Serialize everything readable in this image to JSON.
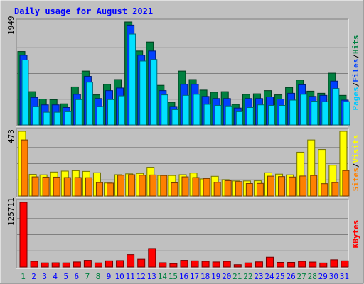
{
  "colors": {
    "background": "#C0C0C0",
    "plot_bg": "#C0C0C0",
    "border": "#808080",
    "hits": "#008040",
    "files": "#0040FF",
    "pages": "#00E0FF",
    "visits": "#FFFF00",
    "sites": "#FF8000",
    "kbytes": "#FF0000",
    "weekend_label": "#008040",
    "weekday_label": "#0000FF",
    "title": "#0000FF"
  },
  "chart_data": [
    {
      "type": "bar",
      "title": "Daily usage for August 2021",
      "panel": "top",
      "categories": [
        "1",
        "2",
        "3",
        "4",
        "5",
        "6",
        "7",
        "8",
        "9",
        "10",
        "11",
        "12",
        "13",
        "14",
        "15",
        "16",
        "17",
        "18",
        "19",
        "20",
        "21",
        "22",
        "23",
        "24",
        "25",
        "26",
        "27",
        "28",
        "29",
        "30",
        "31"
      ],
      "weekend": [
        true,
        false,
        false,
        false,
        false,
        false,
        true,
        true,
        false,
        false,
        false,
        false,
        false,
        true,
        true,
        false,
        false,
        false,
        false,
        false,
        true,
        true,
        false,
        false,
        false,
        false,
        true,
        true,
        false,
        false,
        false
      ],
      "ytick_label": "1949",
      "ylim": [
        0,
        1949
      ],
      "series": [
        {
          "name": "Hits",
          "values": [
            1390,
            630,
            490,
            480,
            400,
            720,
            1020,
            570,
            770,
            860,
            1949,
            1400,
            1570,
            750,
            430,
            1020,
            860,
            660,
            620,
            630,
            390,
            580,
            590,
            650,
            570,
            710,
            850,
            640,
            600,
            980,
            560
          ]
        },
        {
          "name": "Files",
          "values": [
            1320,
            520,
            380,
            380,
            330,
            580,
            920,
            500,
            650,
            700,
            1890,
            1320,
            1400,
            650,
            350,
            770,
            770,
            540,
            500,
            500,
            320,
            500,
            500,
            530,
            490,
            600,
            760,
            540,
            560,
            830,
            470
          ]
        },
        {
          "name": "Pages",
          "values": [
            1230,
            350,
            240,
            240,
            250,
            480,
            810,
            350,
            480,
            550,
            1720,
            1210,
            1240,
            570,
            290,
            560,
            580,
            390,
            370,
            360,
            250,
            330,
            380,
            370,
            370,
            470,
            580,
            450,
            440,
            690,
            440
          ]
        }
      ]
    },
    {
      "type": "bar",
      "panel": "middle",
      "categories": [
        "1",
        "2",
        "3",
        "4",
        "5",
        "6",
        "7",
        "8",
        "9",
        "10",
        "11",
        "12",
        "13",
        "14",
        "15",
        "16",
        "17",
        "18",
        "19",
        "20",
        "21",
        "22",
        "23",
        "24",
        "25",
        "26",
        "27",
        "28",
        "29",
        "30",
        "31"
      ],
      "ytick_label": "473",
      "ylim": [
        0,
        473
      ],
      "series": [
        {
          "name": "Visits",
          "values": [
            473,
            158,
            155,
            175,
            182,
            185,
            180,
            170,
            95,
            156,
            162,
            165,
            210,
            151,
            150,
            156,
            168,
            125,
            144,
            120,
            110,
            110,
            111,
            170,
            160,
            155,
            320,
            410,
            340,
            225,
            473
          ]
        },
        {
          "name": "Sites",
          "values": [
            410,
            140,
            138,
            138,
            135,
            135,
            134,
            98,
            94,
            152,
            156,
            152,
            154,
            150,
            96,
            140,
            135,
            128,
            100,
            112,
            105,
            91,
            92,
            145,
            142,
            139,
            146,
            150,
            90,
            98,
            186
          ]
        }
      ]
    },
    {
      "type": "bar",
      "panel": "bottom",
      "categories": [
        "1",
        "2",
        "3",
        "4",
        "5",
        "6",
        "7",
        "8",
        "9",
        "10",
        "11",
        "12",
        "13",
        "14",
        "15",
        "16",
        "17",
        "18",
        "19",
        "20",
        "21",
        "22",
        "23",
        "24",
        "25",
        "26",
        "27",
        "28",
        "29",
        "30",
        "31"
      ],
      "ytick_label": "125711",
      "ylim": [
        0,
        125711
      ],
      "series": [
        {
          "name": "KBytes",
          "values": [
            125711,
            11000,
            8000,
            8200,
            8000,
            9800,
            13000,
            8000,
            12000,
            12500,
            24000,
            15000,
            36000,
            8300,
            6600,
            13000,
            12000,
            11000,
            9800,
            11000,
            4500,
            8000,
            10000,
            19000,
            9000,
            9000,
            11000,
            9600,
            7800,
            14000,
            12000
          ]
        }
      ]
    }
  ],
  "right_labels": {
    "top": [
      {
        "text": "Pages",
        "color": "#00C8FF"
      },
      {
        "text": "Files",
        "color": "#0040FF"
      },
      {
        "text": "Hits",
        "color": "#008040"
      }
    ],
    "middle": [
      {
        "text": "Sites",
        "color": "#FF8000"
      },
      {
        "text": "Visits",
        "color": "#FFFF00"
      }
    ],
    "bottom": [
      {
        "text": "KBytes",
        "color": "#FF0000"
      }
    ],
    "separator": "/"
  }
}
